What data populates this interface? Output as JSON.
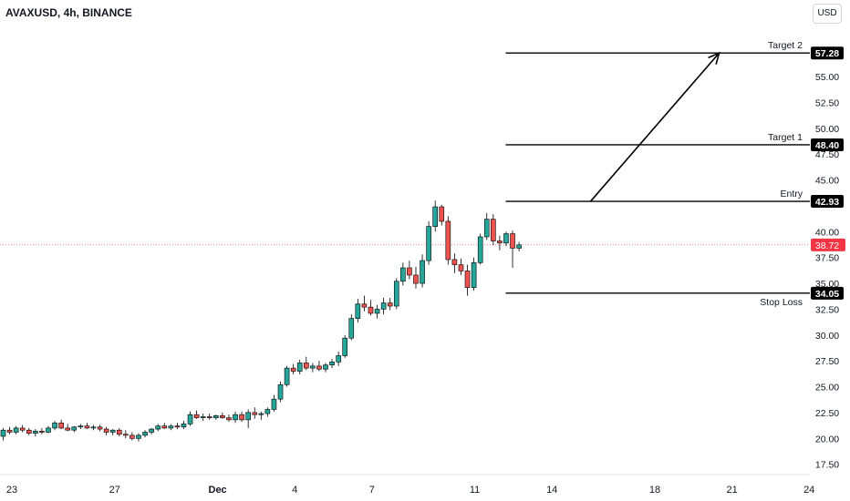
{
  "header": {
    "symbol": "AVAXUSD, 4h, BINANCE",
    "currency_button": "USD"
  },
  "colors": {
    "up": "#26a69a",
    "down": "#ef5350",
    "line": "#000000",
    "last_price": "#f23645"
  },
  "chart_data": {
    "type": "candlestick",
    "x_tick_labels": [
      {
        "label": "23",
        "day": 0
      },
      {
        "label": "27",
        "day": 4
      },
      {
        "label": "Dec",
        "day": 8
      },
      {
        "label": "4",
        "day": 11
      },
      {
        "label": "7",
        "day": 14
      },
      {
        "label": "11",
        "day": 18
      },
      {
        "label": "14",
        "day": 21
      },
      {
        "label": "18",
        "day": 25
      },
      {
        "label": "21",
        "day": 28
      },
      {
        "label": "24",
        "day": 31
      }
    ],
    "y_ticks": [
      "17.50",
      "20.00",
      "22.50",
      "25.00",
      "27.50",
      "30.00",
      "32.50",
      "35.00",
      "37.50",
      "40.00",
      "45.00",
      "47.50",
      "50.00",
      "52.50",
      "55.00"
    ],
    "ylim": [
      16.5,
      59.5
    ],
    "levels": [
      {
        "label": "Target 2",
        "value": "57.28",
        "start_day": 19.2
      },
      {
        "label": "Target 1",
        "value": "48.40",
        "start_day": 19.2
      },
      {
        "label": "Entry",
        "value": "42.93",
        "start_day": 19.2
      },
      {
        "label": "Stop Loss",
        "value": "34.05",
        "start_day": 19.2
      }
    ],
    "last_price": "38.72",
    "arrow": {
      "from_day": 22.5,
      "from_value": 42.93,
      "to_day": 27.5,
      "to_value": 57.28
    },
    "candles": [
      [
        20.2,
        21.0,
        19.8,
        20.8
      ],
      [
        20.8,
        21.1,
        20.4,
        20.6
      ],
      [
        20.6,
        21.2,
        20.4,
        21.0
      ],
      [
        21.0,
        21.3,
        20.6,
        20.8
      ],
      [
        20.8,
        21.0,
        20.3,
        20.5
      ],
      [
        20.5,
        20.9,
        20.2,
        20.7
      ],
      [
        20.7,
        21.0,
        20.4,
        20.6
      ],
      [
        20.6,
        21.2,
        20.5,
        21.0
      ],
      [
        21.0,
        21.7,
        20.8,
        21.5
      ],
      [
        21.5,
        21.8,
        20.9,
        21.0
      ],
      [
        21.0,
        21.4,
        20.7,
        20.8
      ],
      [
        20.8,
        21.2,
        20.6,
        21.1
      ],
      [
        21.1,
        21.4,
        20.9,
        21.2
      ],
      [
        21.2,
        21.5,
        20.9,
        21.0
      ],
      [
        21.0,
        21.3,
        20.8,
        21.1
      ],
      [
        21.1,
        21.3,
        20.7,
        20.9
      ],
      [
        20.9,
        21.1,
        20.3,
        20.6
      ],
      [
        20.6,
        20.9,
        20.3,
        20.8
      ],
      [
        20.8,
        21.0,
        20.2,
        20.4
      ],
      [
        20.4,
        20.8,
        20.0,
        20.3
      ],
      [
        20.3,
        20.6,
        19.8,
        20.0
      ],
      [
        20.0,
        20.5,
        19.7,
        20.3
      ],
      [
        20.3,
        20.8,
        20.1,
        20.6
      ],
      [
        20.6,
        21.0,
        20.4,
        20.9
      ],
      [
        20.9,
        21.4,
        20.7,
        21.2
      ],
      [
        21.2,
        21.5,
        20.9,
        21.0
      ],
      [
        21.0,
        21.4,
        20.8,
        21.2
      ],
      [
        21.2,
        21.5,
        20.9,
        21.1
      ],
      [
        21.1,
        21.7,
        20.9,
        21.4
      ],
      [
        21.4,
        22.6,
        21.2,
        22.3
      ],
      [
        22.3,
        22.7,
        21.9,
        22.0
      ],
      [
        22.0,
        22.4,
        21.7,
        22.1
      ],
      [
        22.1,
        22.4,
        21.8,
        22.0
      ],
      [
        22.0,
        22.3,
        21.8,
        22.2
      ],
      [
        22.2,
        22.5,
        21.9,
        22.0
      ],
      [
        22.0,
        22.3,
        21.6,
        21.8
      ],
      [
        21.8,
        22.6,
        21.5,
        22.3
      ],
      [
        22.3,
        22.6,
        21.6,
        21.8
      ],
      [
        21.8,
        22.8,
        21.0,
        22.5
      ],
      [
        22.5,
        23.0,
        21.9,
        22.3
      ],
      [
        22.3,
        22.6,
        21.8,
        22.4
      ],
      [
        22.4,
        23.0,
        22.1,
        22.8
      ],
      [
        22.8,
        24.2,
        22.6,
        23.8
      ],
      [
        23.8,
        25.5,
        23.5,
        25.2
      ],
      [
        25.2,
        27.0,
        25.0,
        26.8
      ],
      [
        26.8,
        27.2,
        26.2,
        26.5
      ],
      [
        26.5,
        27.6,
        26.2,
        27.3
      ],
      [
        27.3,
        27.9,
        26.6,
        26.8
      ],
      [
        26.8,
        27.3,
        26.4,
        27.0
      ],
      [
        27.0,
        27.5,
        26.5,
        26.7
      ],
      [
        26.7,
        27.3,
        26.4,
        27.1
      ],
      [
        27.1,
        27.7,
        26.8,
        27.4
      ],
      [
        27.4,
        28.4,
        27.0,
        28.0
      ],
      [
        28.0,
        30.0,
        27.8,
        29.7
      ],
      [
        29.7,
        32.0,
        29.5,
        31.6
      ],
      [
        31.6,
        33.5,
        31.2,
        33.0
      ],
      [
        33.0,
        33.8,
        32.3,
        32.7
      ],
      [
        32.7,
        33.4,
        31.9,
        32.1
      ],
      [
        32.1,
        32.9,
        31.6,
        32.5
      ],
      [
        32.5,
        33.6,
        32.0,
        33.1
      ],
      [
        33.1,
        33.6,
        32.4,
        32.8
      ],
      [
        32.8,
        35.5,
        32.5,
        35.2
      ],
      [
        35.2,
        37.0,
        34.8,
        36.5
      ],
      [
        36.5,
        37.2,
        35.4,
        35.8
      ],
      [
        35.8,
        36.6,
        34.5,
        35.0
      ],
      [
        35.0,
        37.8,
        34.6,
        37.2
      ],
      [
        37.2,
        41.0,
        36.8,
        40.5
      ],
      [
        40.5,
        43.0,
        40.0,
        42.4
      ],
      [
        42.4,
        42.6,
        40.6,
        41.0
      ],
      [
        41.0,
        41.5,
        36.8,
        37.3
      ],
      [
        37.3,
        37.9,
        36.0,
        36.8
      ],
      [
        36.8,
        37.4,
        35.8,
        36.2
      ],
      [
        36.2,
        36.8,
        33.8,
        34.6
      ],
      [
        34.6,
        37.5,
        34.3,
        37.0
      ],
      [
        37.0,
        39.8,
        36.8,
        39.5
      ],
      [
        39.5,
        41.8,
        39.2,
        41.2
      ],
      [
        41.2,
        41.7,
        38.7,
        39.1
      ],
      [
        39.1,
        39.6,
        38.2,
        38.9
      ],
      [
        38.9,
        40.0,
        38.6,
        39.8
      ],
      [
        39.8,
        40.1,
        36.5,
        38.4
      ],
      [
        38.4,
        39.0,
        38.1,
        38.72
      ]
    ]
  }
}
